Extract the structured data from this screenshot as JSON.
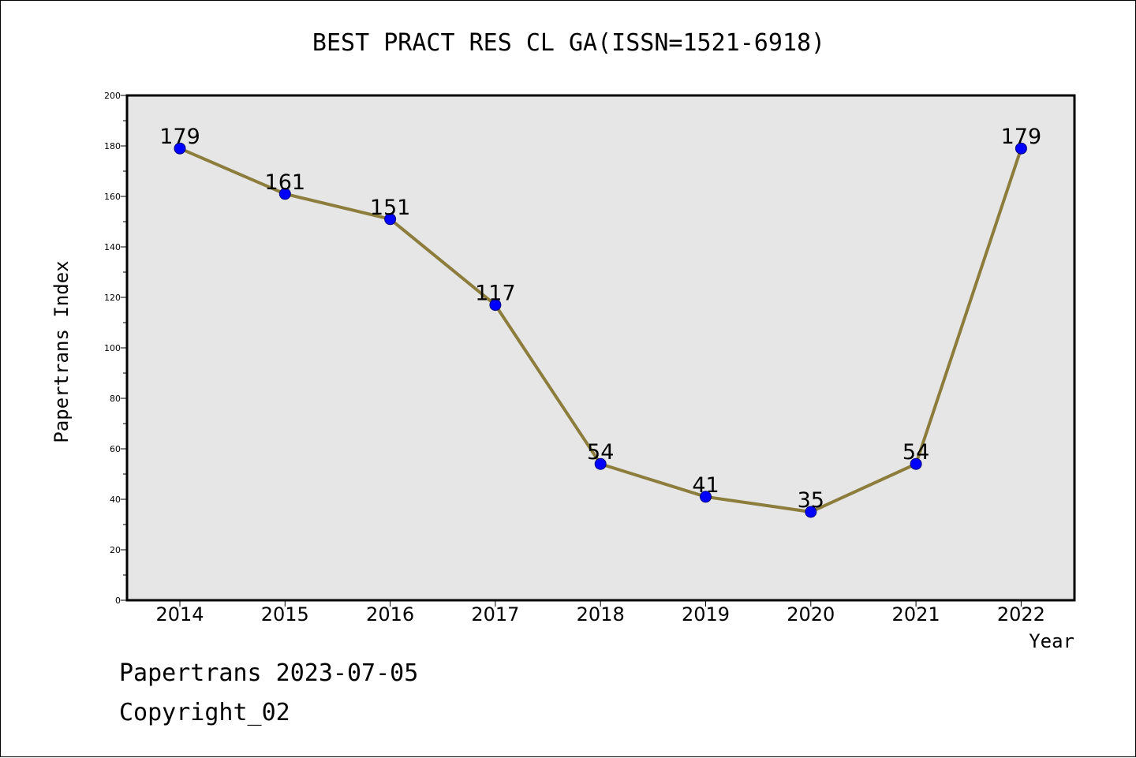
{
  "colors": {
    "plot_background": "#e6e6e6",
    "line": "#8c7d3c",
    "marker": "#0000ff",
    "axis": "#000000"
  },
  "chart_data": {
    "type": "line",
    "title": "BEST PRACT RES CL GA(ISSN=1521-6918)",
    "xlabel": "Year",
    "ylabel": "Papertrans Index",
    "categories": [
      "2014",
      "2015",
      "2016",
      "2017",
      "2018",
      "2019",
      "2020",
      "2021",
      "2022"
    ],
    "values": [
      179,
      161,
      151,
      117,
      54,
      41,
      35,
      54,
      179
    ],
    "data_labels": [
      "179",
      "161",
      "151",
      "117",
      "54",
      "41",
      "35",
      "54",
      "179"
    ],
    "ylim": [
      0,
      200
    ],
    "yticks": [
      0,
      20,
      40,
      60,
      80,
      100,
      120,
      140,
      160,
      180,
      200
    ],
    "grid": false,
    "legend": "none"
  },
  "footer": {
    "line1": "Papertrans 2023-07-05",
    "line2": "Copyright_02"
  }
}
